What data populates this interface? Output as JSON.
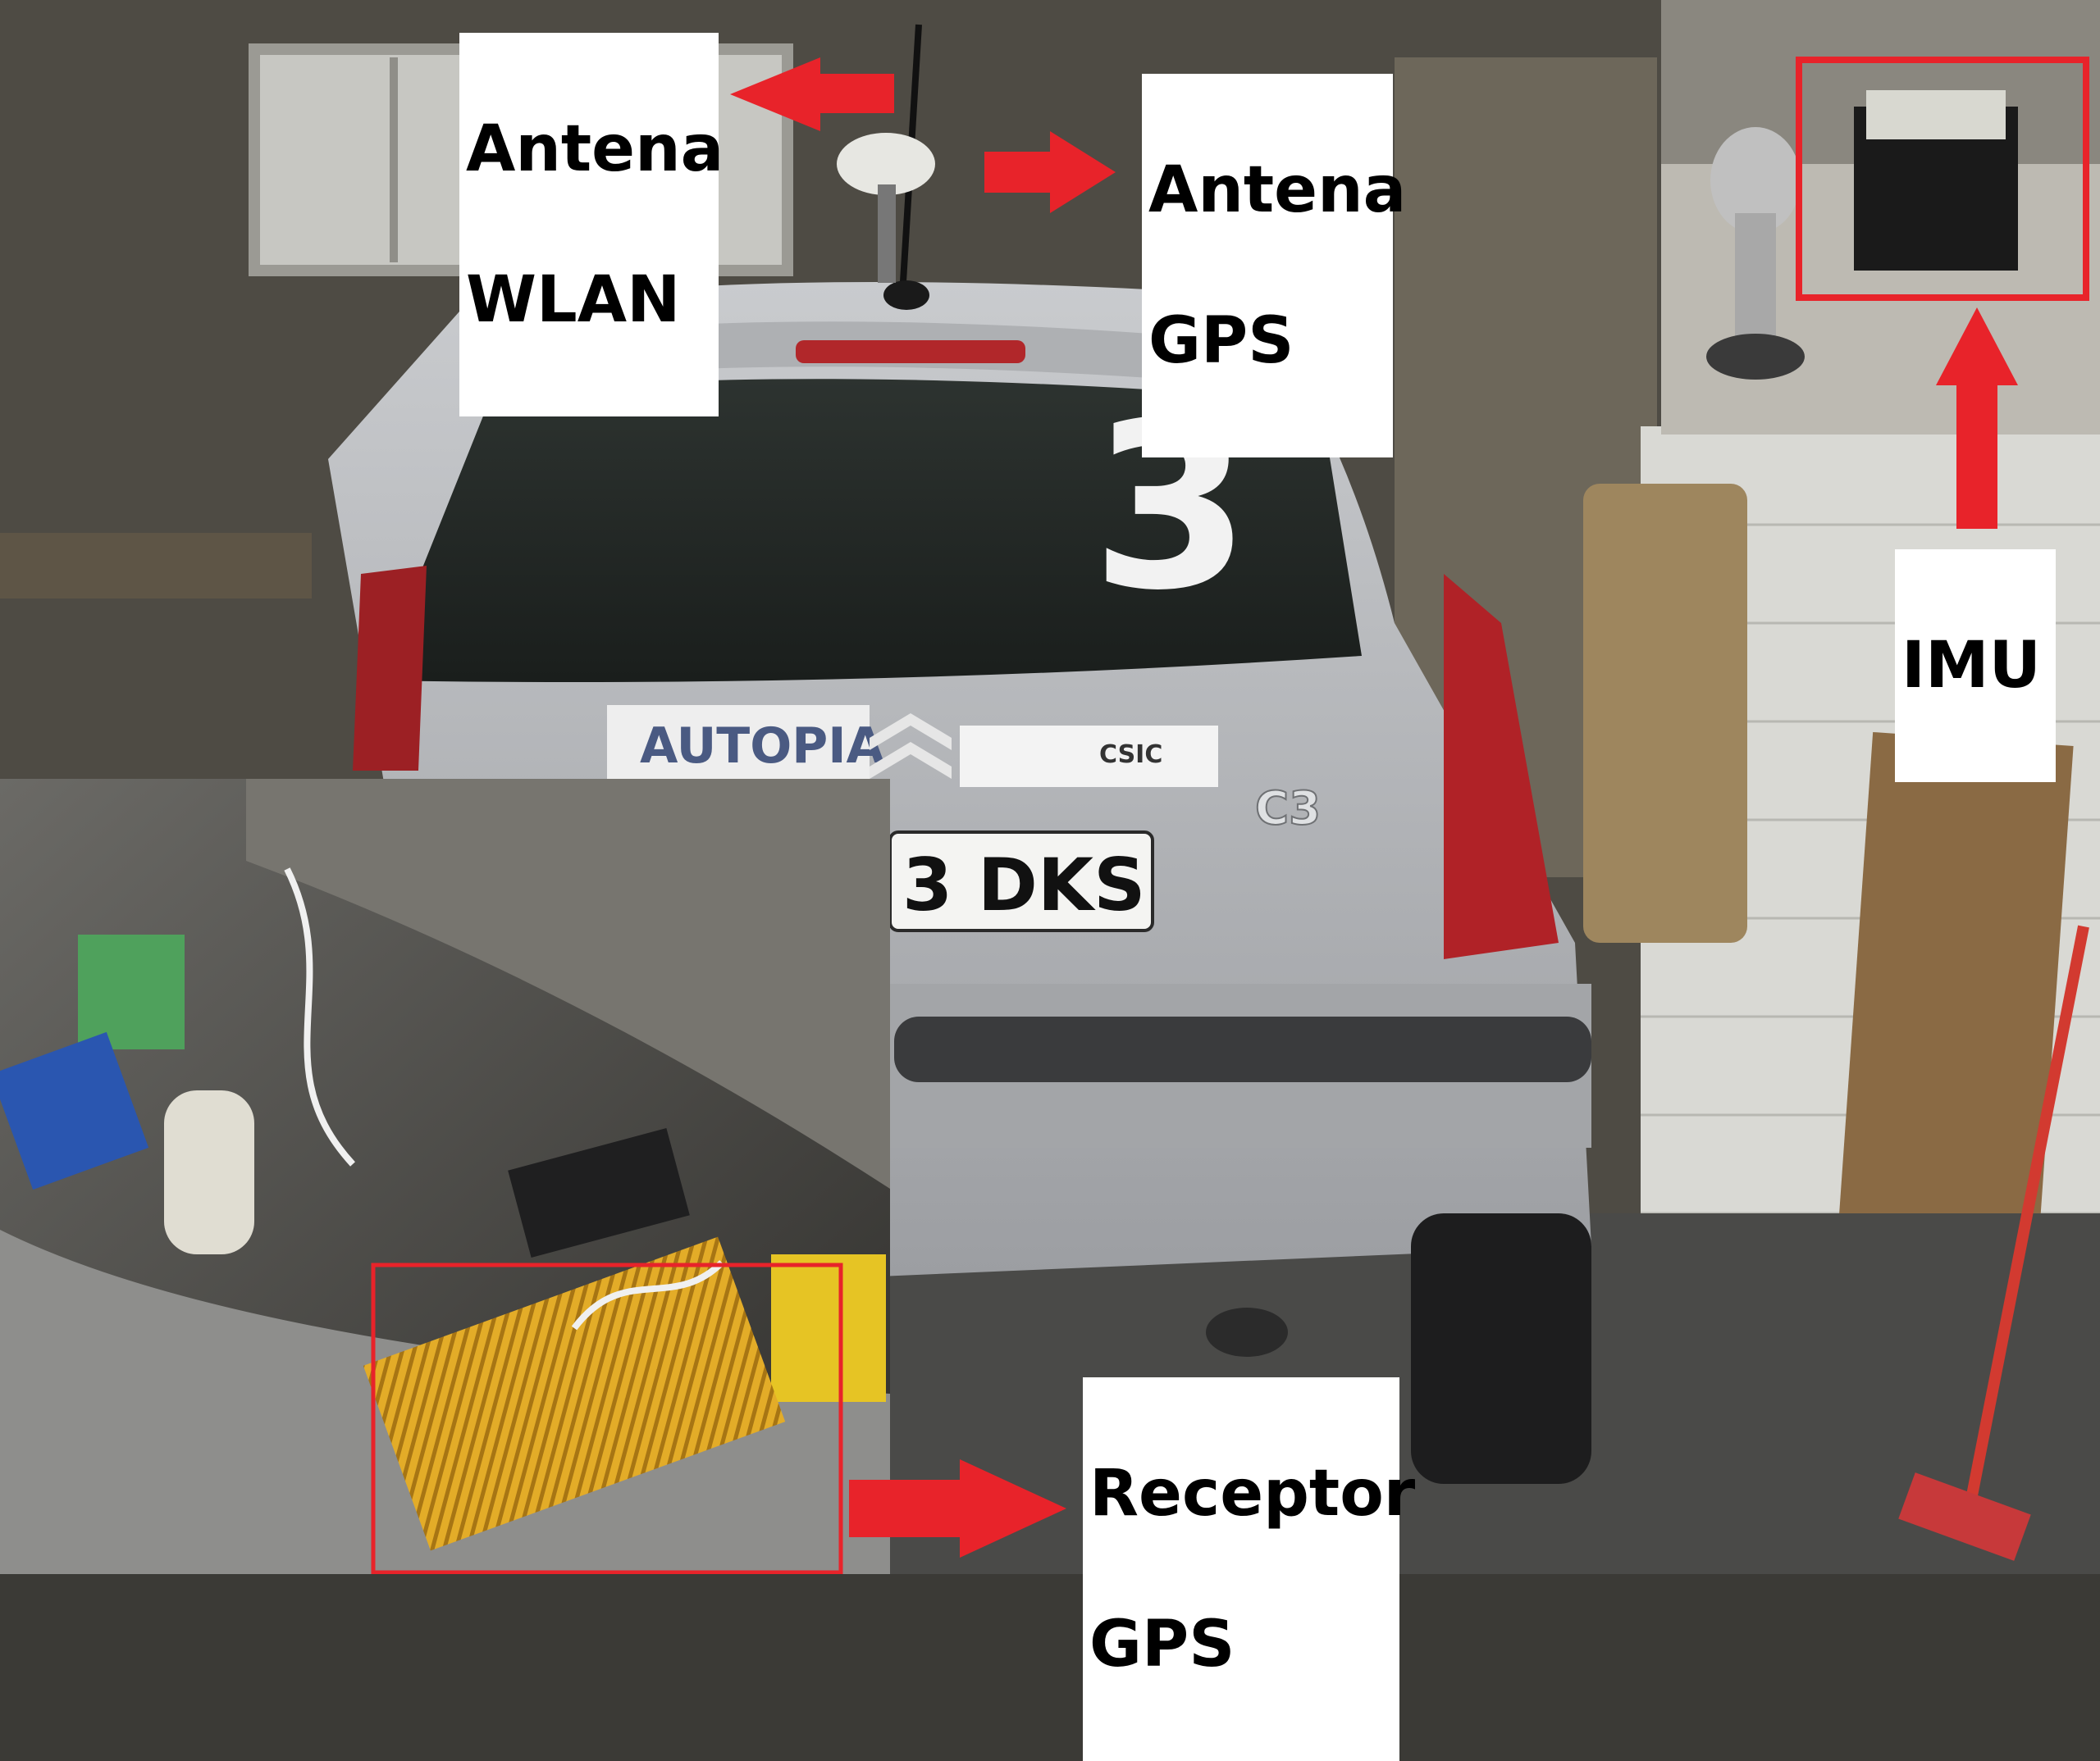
{
  "labels": {
    "wlan": [
      "Antena",
      "WLAN"
    ],
    "gps_antenna": [
      "Antena",
      "GPS"
    ],
    "imu": [
      "IMU"
    ],
    "gps_receiver": [
      "Receptor",
      "GPS"
    ]
  },
  "car": {
    "number": "3",
    "plate": "3 DKS",
    "model_badge": "C3",
    "sticker_program": "AUTOPIA",
    "sticker_csic": "CSIC"
  },
  "colors": {
    "arrow": "#e8232a",
    "highlight_box": "#e8232a",
    "car_body": "#b9bbbe",
    "garage_wall": "#5a564d"
  }
}
